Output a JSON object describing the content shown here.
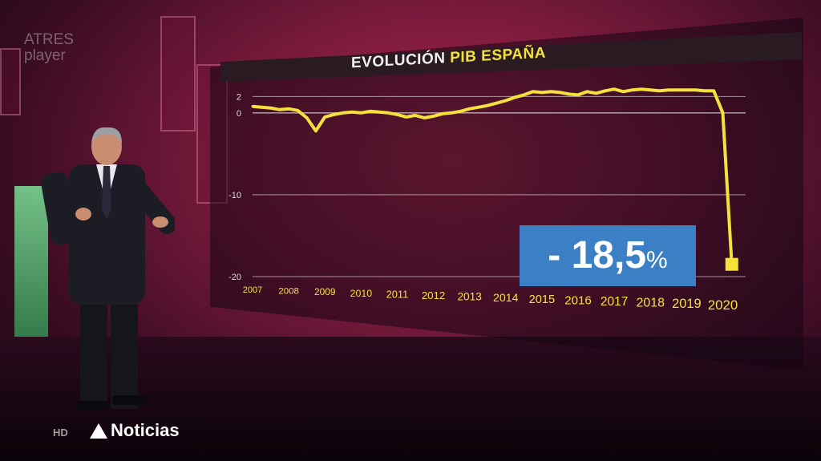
{
  "branding": {
    "channel_logo_line1": "ATRES",
    "channel_logo_line2": "player",
    "program_logo": "Noticias",
    "hd_label": "HD"
  },
  "headline": {
    "title_prefix": "EVOLUCIÓN",
    "title_highlight": "PIB ESPAÑA"
  },
  "callout": {
    "value": "- 18,5",
    "unit": "%"
  },
  "colors": {
    "line": "#f5e13c",
    "accent": "#3b7fc4",
    "title_highlight": "#f5e13c"
  },
  "chart_data": {
    "type": "line",
    "title": "EVOLUCIÓN PIB ESPAÑA",
    "xlabel": "",
    "ylabel": "",
    "y_ticks": [
      "2",
      "0",
      "-10",
      "-20"
    ],
    "ylim": [
      -20,
      4
    ],
    "x": [
      2007,
      2007.25,
      2007.5,
      2007.75,
      2008,
      2008.25,
      2008.5,
      2008.75,
      2009,
      2009.25,
      2009.5,
      2009.75,
      2010,
      2010.25,
      2010.5,
      2010.75,
      2011,
      2011.25,
      2011.5,
      2011.75,
      2012,
      2012.25,
      2012.5,
      2012.75,
      2013,
      2013.25,
      2013.5,
      2013.75,
      2014,
      2014.25,
      2014.5,
      2014.75,
      2015,
      2015.25,
      2015.5,
      2015.75,
      2016,
      2016.25,
      2016.5,
      2016.75,
      2017,
      2017.25,
      2017.5,
      2017.75,
      2018,
      2018.25,
      2018.5,
      2018.75,
      2019,
      2019.25,
      2019.5,
      2019.75,
      2020,
      2020.25
    ],
    "values": [
      0.8,
      0.7,
      0.6,
      0.4,
      0.5,
      0.3,
      -0.6,
      -2.2,
      -0.5,
      -0.2,
      0.0,
      0.1,
      0.0,
      0.2,
      0.1,
      0.0,
      -0.2,
      -0.5,
      -0.3,
      -0.6,
      -0.4,
      -0.1,
      0.0,
      0.2,
      0.5,
      0.7,
      0.9,
      1.2,
      1.5,
      1.9,
      2.2,
      2.6,
      2.5,
      2.6,
      2.5,
      2.3,
      2.2,
      2.6,
      2.4,
      2.7,
      2.9,
      2.6,
      2.8,
      2.9,
      2.8,
      2.7,
      2.8,
      2.8,
      2.8,
      2.8,
      2.7,
      2.7,
      0.0,
      -18.5
    ],
    "x_tick_labels": [
      "2007",
      "2008",
      "2009",
      "2010",
      "2011",
      "2012",
      "2013",
      "2014",
      "2015",
      "2016",
      "2017",
      "2018",
      "2019",
      "2020"
    ],
    "annotations": [
      "- 18,5 %"
    ],
    "grid": true,
    "legend": "none"
  }
}
